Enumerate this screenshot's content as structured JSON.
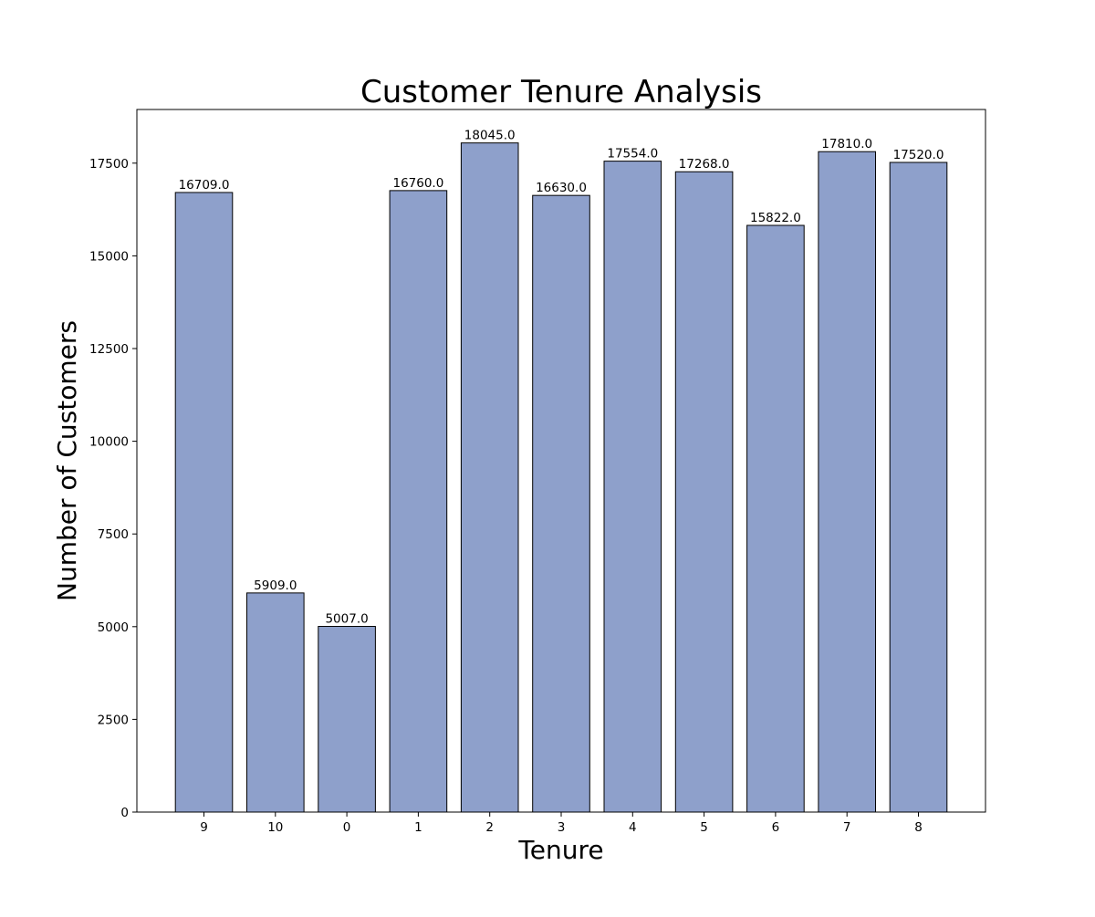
{
  "chart_data": {
    "type": "bar",
    "title": "Customer Tenure Analysis",
    "xlabel": "Tenure",
    "ylabel": "Number of Customers",
    "categories": [
      "9",
      "10",
      "0",
      "1",
      "2",
      "3",
      "4",
      "5",
      "6",
      "7",
      "8"
    ],
    "values": [
      16709,
      5909,
      5007,
      16760,
      18045,
      16630,
      17554,
      17268,
      15822,
      17810,
      17520
    ],
    "data_labels": [
      "16709.0",
      "5909.0",
      "5007.0",
      "16760.0",
      "18045.0",
      "16630.0",
      "17554.0",
      "17268.0",
      "15822.0",
      "17810.0",
      "17520.0"
    ],
    "y_ticks": [
      0,
      2500,
      5000,
      7500,
      10000,
      12500,
      15000,
      17500
    ],
    "ylim": [
      0,
      18947
    ],
    "grid": false,
    "legend": "none",
    "colors": {
      "bar_fill": "#8ea0cb",
      "bar_edge": "#000000",
      "axis": "#000000",
      "background": "#ffffff"
    }
  }
}
